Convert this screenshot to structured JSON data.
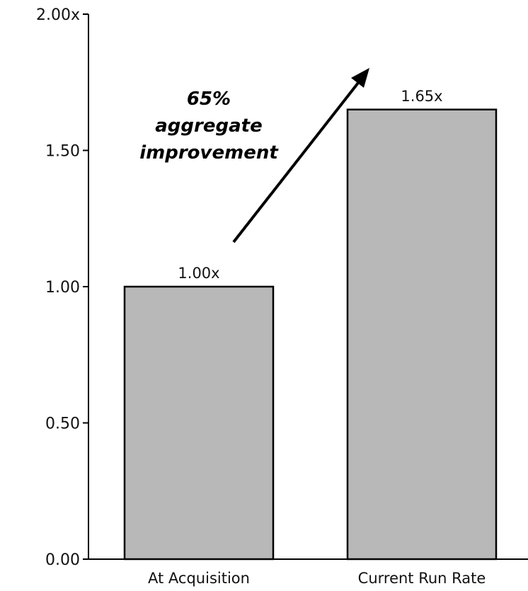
{
  "chart_data": {
    "type": "bar",
    "categories": [
      "At Acquisition",
      "Current Run Rate"
    ],
    "values": [
      1.0,
      1.65
    ],
    "data_labels": [
      "1.00x",
      "1.65x"
    ],
    "ylim": [
      0,
      2.0
    ],
    "yticks": [
      0,
      0.5,
      1.0,
      1.5,
      2.0
    ],
    "ytick_labels": [
      "0.00",
      "0.50",
      "1.00",
      "1.50",
      "2.00x"
    ],
    "grid": false,
    "bar_color": "#b8b8b8",
    "bar_outline_color": "#000000",
    "annotation": {
      "lines": [
        "65%",
        "aggregate",
        "improvement"
      ],
      "arrow": "from the first bar toward the second bar"
    }
  }
}
